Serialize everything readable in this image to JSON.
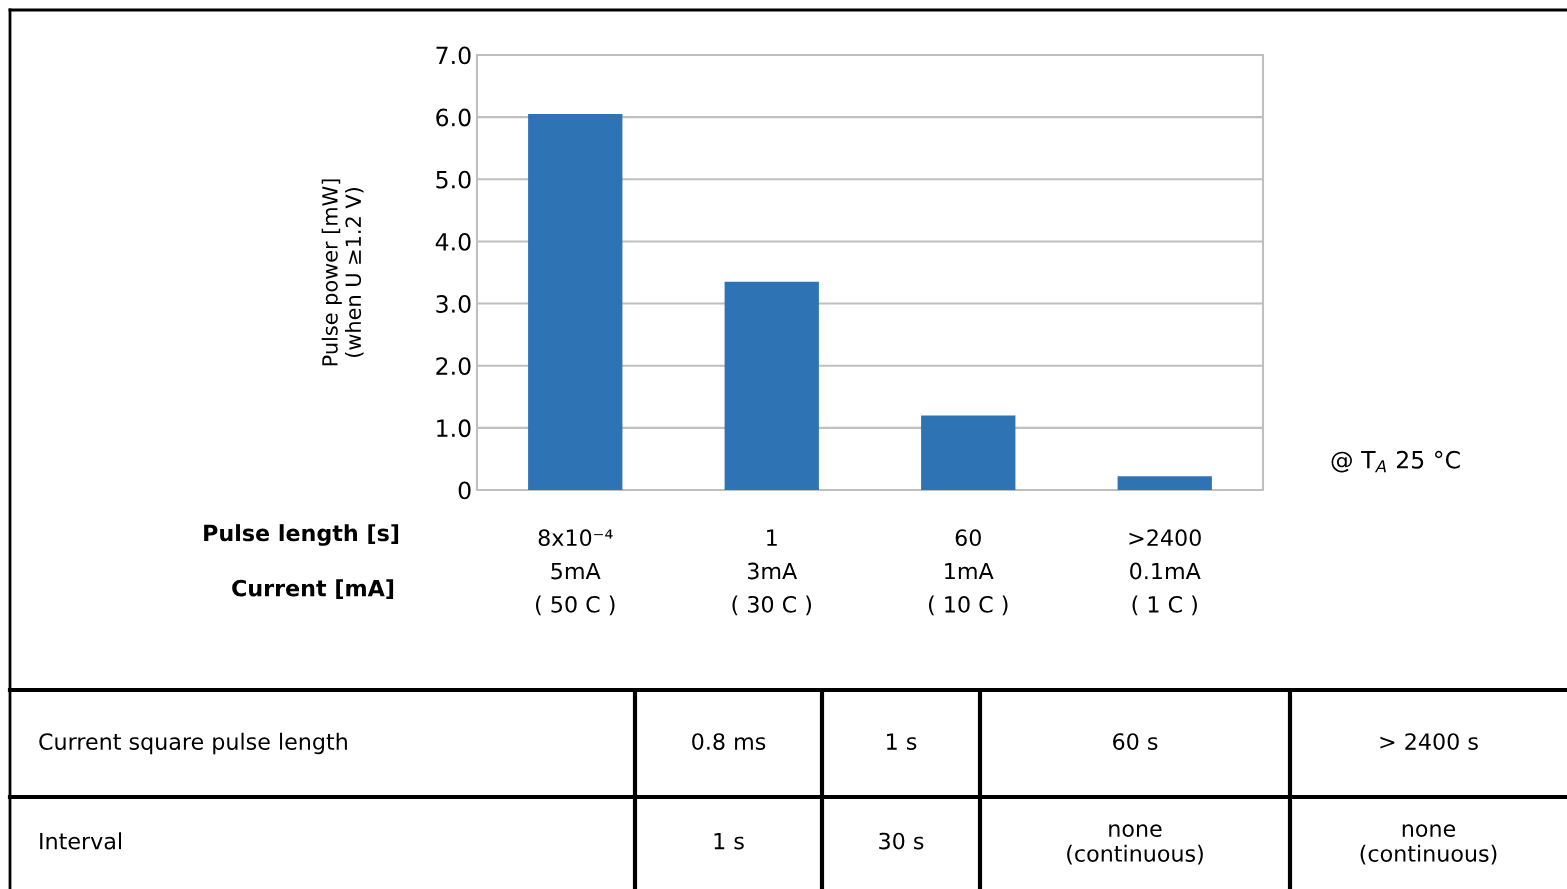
{
  "chart_data": {
    "type": "bar",
    "ylabel": "Pulse power [mW]\n(when U ≥1.2 V)",
    "categories": [
      "8x10⁻⁴\n5mA\n( 50 C )",
      "1\n3mA\n( 30 C )",
      "60\n1mA\n( 10 C )",
      ">2400\n0.1mA\n( 1 C )"
    ],
    "values": [
      6.05,
      3.35,
      1.2,
      0.22
    ],
    "color": "#2e74b5",
    "ylim": [
      0,
      7
    ],
    "yticks": [
      {
        "value": 0,
        "label": "0"
      },
      {
        "value": 1,
        "label": "1.0"
      },
      {
        "value": 2,
        "label": "2.0"
      },
      {
        "value": 3,
        "label": "3.0"
      },
      {
        "value": 4,
        "label": "4.0"
      },
      {
        "value": 5,
        "label": "5.0"
      },
      {
        "value": 6,
        "label": "6.0"
      },
      {
        "value": 7,
        "label": "7.0"
      }
    ],
    "grid": "y",
    "annotations": [
      "Pulse length [s]",
      "Current [mA]",
      "@ T$_{A}$ 25 °C",
      "Current square pulse length",
      "0.8 ms",
      "1 s",
      "60 s",
      "> 2400 s",
      "Interval",
      "1 s",
      "30 s",
      "none\n(continuous)",
      "none\n(continuous)"
    ]
  }
}
